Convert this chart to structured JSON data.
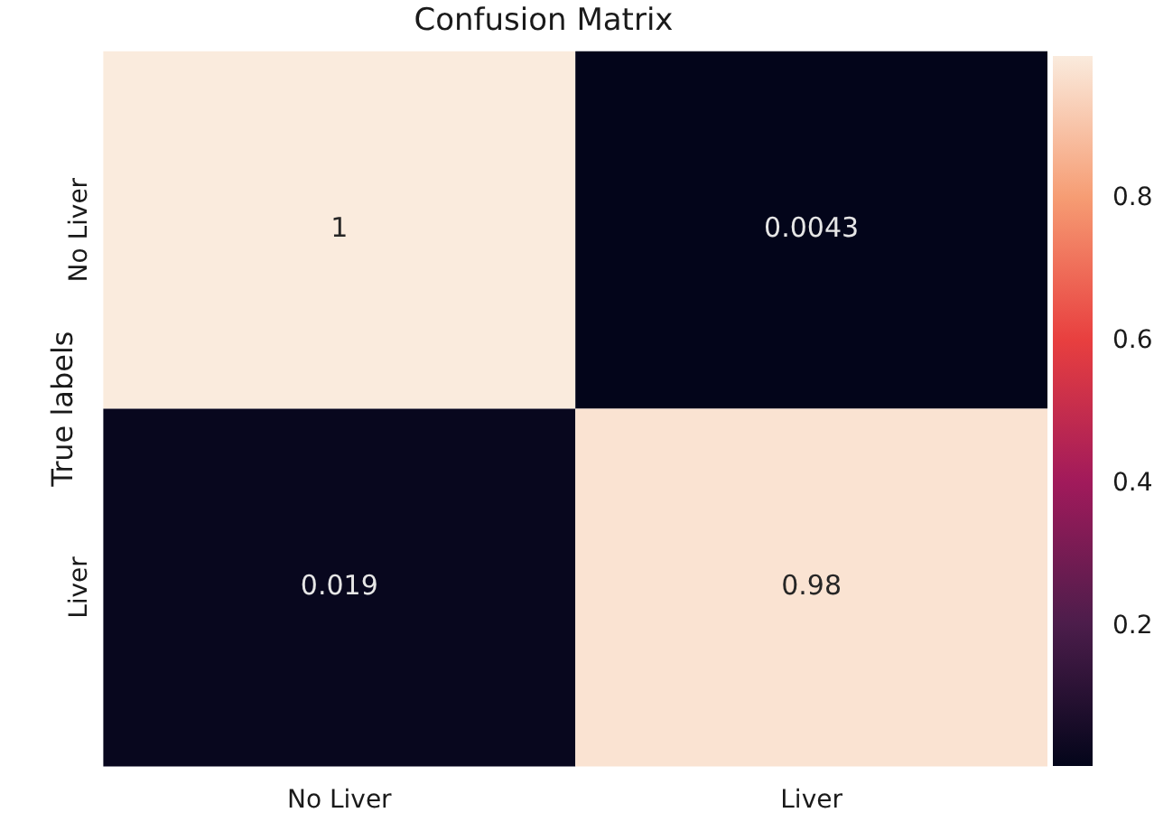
{
  "chart_data": {
    "type": "heatmap",
    "title": "Confusion Matrix",
    "ylabel": "True labels",
    "categories": [
      "No Liver",
      "Liver"
    ],
    "y_categories": [
      "No Liver",
      "Liver"
    ],
    "cells": [
      [
        1,
        0.0043
      ],
      [
        0.019,
        0.98
      ]
    ],
    "data_labels": true,
    "clim": [
      0.0043,
      1
    ],
    "cticks": [
      0.2,
      0.4,
      0.6,
      0.8
    ]
  }
}
